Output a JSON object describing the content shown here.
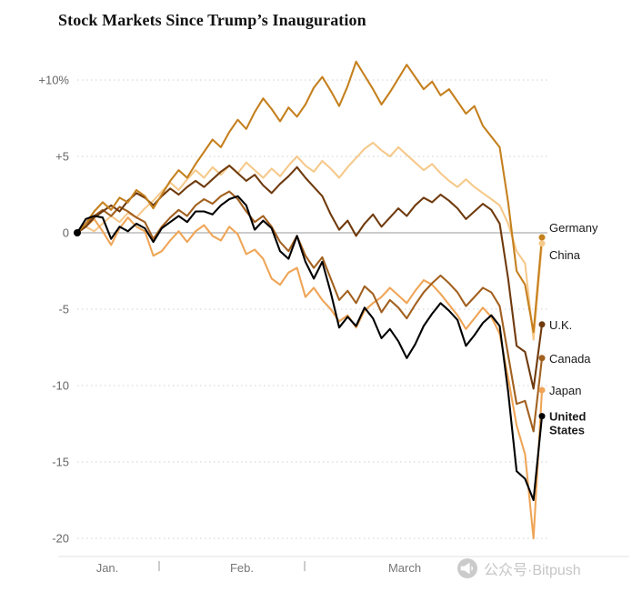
{
  "chart_data": {
    "type": "line",
    "title": "Stock Markets Since Trump’s Inauguration",
    "xlabel": "",
    "ylabel": "",
    "ylim": [
      -20,
      11.5
    ],
    "grid": "horizontal-dotted",
    "legend_position": "right-end-labels",
    "x_ticks": [
      "Jan.",
      "Feb.",
      "March"
    ],
    "y_ticks": [
      {
        "label": "+10%",
        "value": 10
      },
      {
        "label": "+5",
        "value": 5
      },
      {
        "label": "0",
        "value": 0
      },
      {
        "label": "-5",
        "value": -5
      },
      {
        "label": "-10",
        "value": -10
      },
      {
        "label": "-15",
        "value": -15
      },
      {
        "label": "-20",
        "value": -20
      }
    ],
    "series": [
      {
        "name": "Germany",
        "color": "#c5801e",
        "bold": false,
        "values": [
          0,
          0.6,
          1.4,
          2.0,
          1.5,
          2.3,
          2.0,
          2.8,
          2.4,
          1.6,
          2.5,
          3.4,
          4.1,
          3.6,
          4.5,
          5.3,
          6.1,
          5.6,
          6.6,
          7.4,
          6.8,
          7.9,
          8.8,
          8.1,
          7.3,
          8.2,
          7.6,
          8.4,
          9.5,
          10.2,
          9.3,
          8.3,
          9.6,
          11.2,
          10.3,
          9.4,
          8.4,
          9.2,
          10.1,
          11.0,
          10.2,
          9.4,
          9.9,
          9.0,
          9.4,
          8.6,
          7.8,
          8.3,
          7.0,
          6.3,
          5.6,
          2.0,
          -2.5,
          -3.4,
          -6.5,
          -0.3
        ]
      },
      {
        "name": "China",
        "color": "#f6c98b",
        "bold": false,
        "values": [
          0,
          0.4,
          0.1,
          0.6,
          1.1,
          0.7,
          1.3,
          1.0,
          1.6,
          2.1,
          2.7,
          3.3,
          2.8,
          3.5,
          4.1,
          3.6,
          4.3,
          3.8,
          4.4,
          3.9,
          4.6,
          4.1,
          3.6,
          4.2,
          3.7,
          4.4,
          5.0,
          4.4,
          4.0,
          4.7,
          4.2,
          3.6,
          4.3,
          4.9,
          5.5,
          5.9,
          5.4,
          5.0,
          5.6,
          5.1,
          4.6,
          4.1,
          4.5,
          3.9,
          3.4,
          3.0,
          3.5,
          3.0,
          2.6,
          2.2,
          1.8,
          0.6,
          -1.2,
          -2.0,
          -7.0,
          -0.7
        ]
      },
      {
        "name": "U.K.",
        "color": "#6f3a0d",
        "bold": false,
        "values": [
          0,
          0.4,
          1.0,
          1.4,
          1.8,
          1.4,
          2.1,
          2.6,
          2.3,
          1.8,
          2.4,
          2.9,
          2.5,
          3.0,
          3.4,
          3.0,
          3.5,
          4.0,
          4.4,
          3.9,
          3.4,
          3.8,
          3.1,
          2.6,
          3.2,
          3.7,
          4.3,
          3.6,
          3.0,
          2.4,
          1.2,
          0.2,
          0.8,
          -0.2,
          0.6,
          1.2,
          0.4,
          1.0,
          1.6,
          1.1,
          1.8,
          2.3,
          2.0,
          2.5,
          2.1,
          1.6,
          0.9,
          1.4,
          1.9,
          1.5,
          0.6,
          -3.0,
          -7.4,
          -7.8,
          -10.2,
          -6.0
        ]
      },
      {
        "name": "Canada",
        "color": "#a2601f",
        "bold": false,
        "values": [
          0,
          0.6,
          1.1,
          1.5,
          1.1,
          1.7,
          1.4,
          1.0,
          0.7,
          -0.4,
          0.4,
          1.0,
          1.5,
          1.1,
          1.8,
          2.2,
          1.9,
          2.4,
          2.7,
          2.2,
          1.4,
          0.7,
          1.1,
          0.4,
          -0.6,
          -1.2,
          -0.2,
          -1.5,
          -2.3,
          -1.6,
          -3.0,
          -4.4,
          -3.8,
          -4.6,
          -3.5,
          -4.0,
          -5.2,
          -4.4,
          -4.9,
          -5.6,
          -4.7,
          -3.9,
          -3.3,
          -2.8,
          -3.3,
          -3.9,
          -4.8,
          -4.2,
          -3.6,
          -3.9,
          -4.8,
          -8.0,
          -11.2,
          -11.0,
          -13.0,
          -8.2
        ]
      },
      {
        "name": "Japan",
        "color": "#efa557",
        "bold": false,
        "values": [
          0,
          0.4,
          0.9,
          0.1,
          -0.8,
          0.3,
          1.0,
          0.4,
          0.1,
          -1.5,
          -1.2,
          -0.5,
          0.1,
          -0.6,
          0.1,
          0.5,
          -0.2,
          -0.5,
          0.4,
          -0.1,
          -1.4,
          -1.1,
          -1.7,
          -3.0,
          -3.4,
          -2.6,
          -2.3,
          -4.2,
          -3.6,
          -4.4,
          -5.0,
          -5.8,
          -5.4,
          -6.2,
          -5.1,
          -4.6,
          -4.2,
          -3.6,
          -4.1,
          -4.6,
          -3.8,
          -3.1,
          -3.4,
          -4.0,
          -4.7,
          -5.4,
          -6.3,
          -5.6,
          -4.9,
          -5.5,
          -6.6,
          -9.5,
          -12.6,
          -14.5,
          -20.0,
          -10.3
        ]
      },
      {
        "name": "United States",
        "color": "#000000",
        "bold": true,
        "label_lines": [
          "United",
          "States"
        ],
        "values": [
          0,
          0.9,
          1.1,
          1.0,
          -0.4,
          0.4,
          0.1,
          0.6,
          0.3,
          -0.6,
          0.3,
          0.7,
          1.1,
          0.7,
          1.4,
          1.4,
          1.2,
          1.8,
          2.2,
          2.4,
          1.8,
          0.2,
          0.8,
          0.3,
          -1.2,
          -1.7,
          -0.2,
          -1.9,
          -3.0,
          -1.9,
          -3.9,
          -6.2,
          -5.5,
          -6.1,
          -4.9,
          -5.6,
          -6.9,
          -6.3,
          -7.1,
          -8.2,
          -7.3,
          -6.1,
          -5.3,
          -4.6,
          -5.1,
          -5.7,
          -7.4,
          -6.7,
          -5.9,
          -5.4,
          -6.1,
          -10.4,
          -15.6,
          -16.1,
          -17.5,
          -12.0
        ]
      }
    ]
  },
  "watermark": {
    "text": "公众号·Bitpush"
  }
}
